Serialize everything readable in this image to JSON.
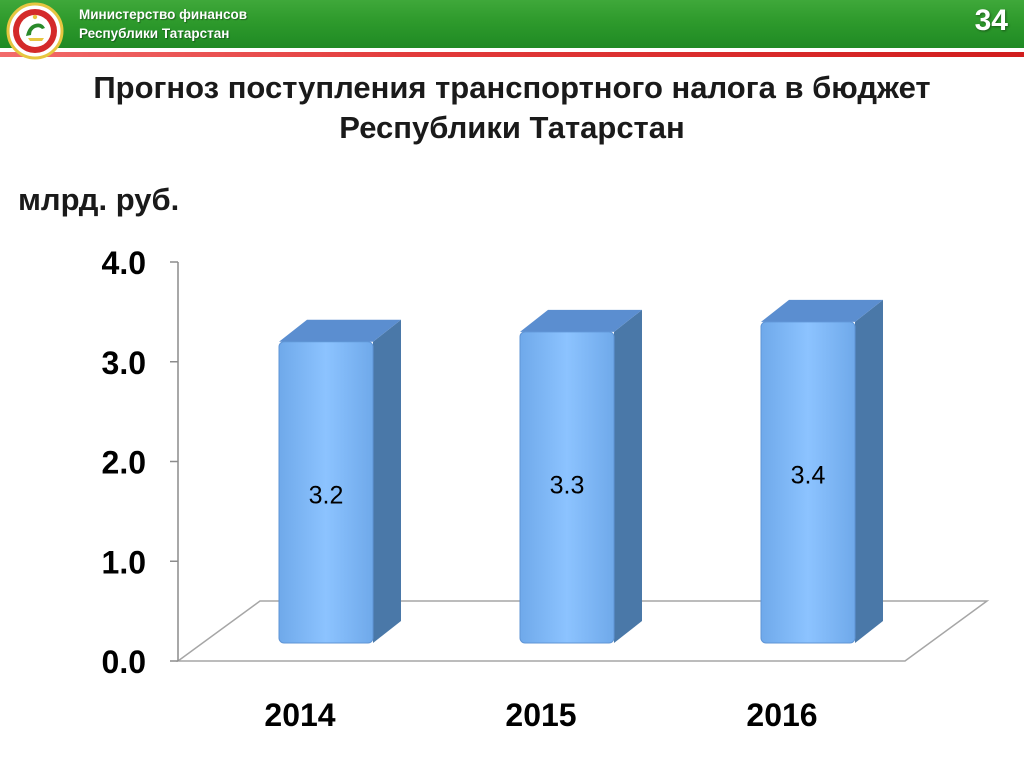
{
  "header": {
    "org_line1": "Министерство финансов",
    "org_line2": "Республики Татарстан",
    "page_number": "34"
  },
  "title": {
    "line1": "Прогноз поступления транспортного налога в бюджет",
    "line2": "Республики Татарстан"
  },
  "unit_label": "млрд. руб.",
  "colors": {
    "header_green": "#2e9a2c",
    "header_red": "#e23b3b",
    "bar_front": "#7cb7f5",
    "bar_side": "#4a78a8",
    "bar_top": "#5b8ed0"
  },
  "icons": {
    "logo": "tatarstan-emblem-icon"
  },
  "chart_data": {
    "type": "bar",
    "categories": [
      "2014",
      "2015",
      "2016"
    ],
    "values": [
      3.2,
      3.3,
      3.4
    ],
    "value_labels": [
      "3.2",
      "3.3",
      "3.4"
    ],
    "ylim": [
      0,
      4
    ],
    "yticks": [
      0,
      1,
      2,
      3,
      4
    ],
    "ytick_labels": [
      "0.0",
      "1.0",
      "2.0",
      "3.0",
      "4.0"
    ],
    "style": "3d-column",
    "grid": false,
    "legend": "none"
  }
}
